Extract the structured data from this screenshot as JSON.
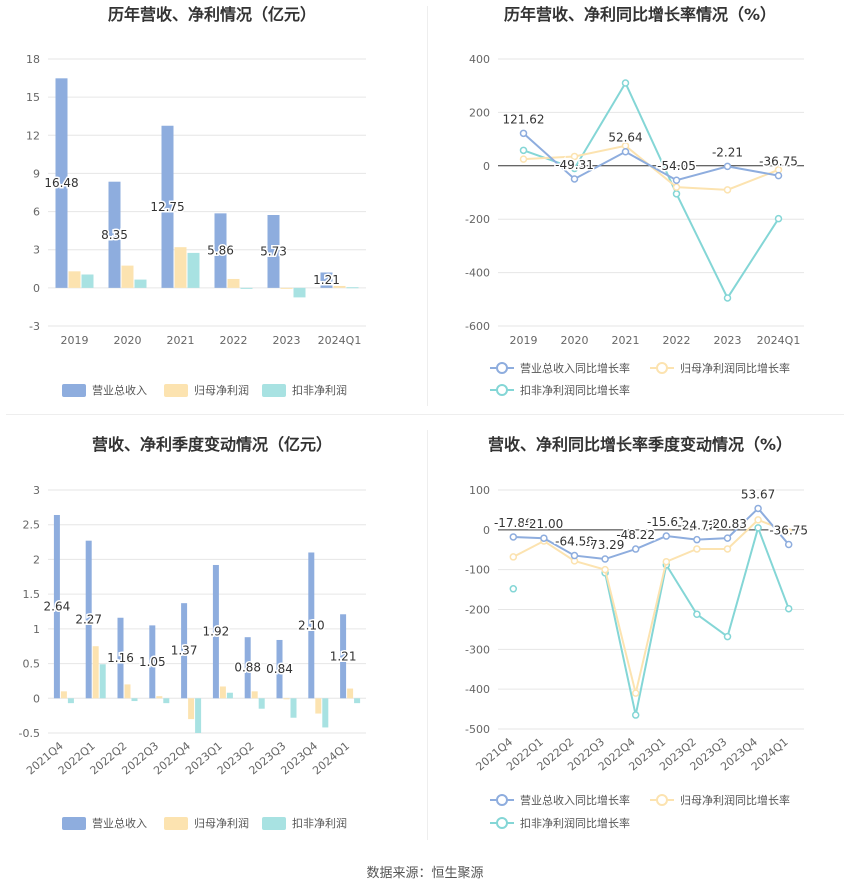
{
  "footer": {
    "source": "数据来源：恒生聚源"
  },
  "colors": {
    "revenue": "#8eadde",
    "profit": "#fce3b0",
    "deducted": "#a8e2e2",
    "line_revenue": "#8eadde",
    "line_profit": "#fce3b0",
    "line_deducted": "#84d6d6"
  },
  "chart_data": [
    {
      "type": "bar",
      "title": "历年营收、净利情况（亿元）",
      "categories": [
        "2019",
        "2020",
        "2021",
        "2022",
        "2023",
        "2024Q1"
      ],
      "ylim": [
        -3,
        18
      ],
      "yticks": [
        -3,
        0,
        3,
        6,
        9,
        12,
        15,
        18
      ],
      "series": [
        {
          "name": "营业总收入",
          "values": [
            16.48,
            8.35,
            12.75,
            5.86,
            5.73,
            1.21
          ],
          "labels": [
            "16.48",
            "8.35",
            "12.75",
            "5.86",
            "5.73",
            "1.21"
          ]
        },
        {
          "name": "归母净利润",
          "values": [
            1.3,
            1.75,
            3.2,
            0.7,
            -0.05,
            0.15
          ]
        },
        {
          "name": "扣非净利润",
          "values": [
            1.05,
            0.65,
            2.75,
            -0.05,
            -0.75,
            0.05
          ]
        }
      ]
    },
    {
      "type": "line",
      "title": "历年营收、净利同比增长率情况（%）",
      "categories": [
        "2019",
        "2020",
        "2021",
        "2022",
        "2023",
        "2024Q1"
      ],
      "ylim": [
        -600,
        400
      ],
      "yticks": [
        -600,
        -400,
        -200,
        0,
        200,
        400
      ],
      "series": [
        {
          "name": "营业总收入同比增长率",
          "values": [
            121.62,
            -49.31,
            52.64,
            -54.05,
            -2.21,
            -36.75
          ],
          "labels": [
            "121.62",
            "-49.31",
            "52.64",
            "-54.05",
            "-2.21",
            "-36.75"
          ]
        },
        {
          "name": "归母净利润同比增长率",
          "values": [
            25,
            35,
            75,
            -80,
            -90,
            -15
          ]
        },
        {
          "name": "扣非净利润同比增长率",
          "values": [
            58,
            -10,
            310,
            -105,
            -495,
            -198
          ]
        }
      ]
    },
    {
      "type": "bar",
      "title": "营收、净利季度变动情况（亿元）",
      "categories": [
        "2021Q4",
        "2022Q1",
        "2022Q2",
        "2022Q3",
        "2022Q4",
        "2023Q1",
        "2023Q2",
        "2023Q3",
        "2023Q4",
        "2024Q1"
      ],
      "ylim": [
        -0.5,
        3
      ],
      "yticks": [
        -0.5,
        0,
        0.5,
        1,
        1.5,
        2,
        2.5,
        3
      ],
      "series": [
        {
          "name": "营业总收入",
          "values": [
            2.64,
            2.27,
            1.16,
            1.05,
            1.37,
            1.92,
            0.88,
            0.84,
            2.1,
            1.21
          ],
          "labels": [
            "2.64",
            "2.27",
            "1.16",
            "1.05",
            "1.37",
            "1.92",
            "0.88",
            "0.84",
            "2.10",
            "1.21"
          ]
        },
        {
          "name": "归母净利润",
          "values": [
            0.1,
            0.75,
            0.2,
            0.03,
            -0.3,
            0.17,
            0.1,
            -0.01,
            -0.22,
            0.14
          ]
        },
        {
          "name": "扣非净利润",
          "values": [
            -0.07,
            0.49,
            -0.04,
            -0.07,
            -0.5,
            0.08,
            -0.15,
            -0.28,
            -0.42,
            -0.07
          ]
        }
      ]
    },
    {
      "type": "line",
      "title": "营收、净利同比增长率季度变动情况（%）",
      "categories": [
        "2021Q4",
        "2022Q1",
        "2022Q2",
        "2022Q3",
        "2022Q4",
        "2023Q1",
        "2023Q2",
        "2023Q3",
        "2023Q4",
        "2024Q1"
      ],
      "ylim": [
        -500,
        100
      ],
      "yticks": [
        -500,
        -400,
        -300,
        -200,
        -100,
        0,
        100
      ],
      "series": [
        {
          "name": "营业总收入同比增长率",
          "values": [
            -17.86,
            -21.0,
            -64.58,
            -73.29,
            -48.22,
            -15.61,
            -24.72,
            -20.83,
            53.67,
            -36.75
          ],
          "labels": [
            "-17.86",
            "-21.00",
            "-64.58",
            "-73.29",
            "-48.22",
            "-15.61",
            "-24.72",
            "-20.83",
            "53.67",
            "-36.75"
          ]
        },
        {
          "name": "归母净利润同比增长率",
          "values": [
            -68,
            -28,
            -78,
            -100,
            -410,
            -80,
            -48,
            -48,
            25,
            -5
          ]
        },
        {
          "name": "扣非净利润同比增长率",
          "values": [
            -148,
            null,
            null,
            -108,
            -465,
            -88,
            -212,
            -268,
            5,
            -198
          ]
        }
      ]
    }
  ]
}
